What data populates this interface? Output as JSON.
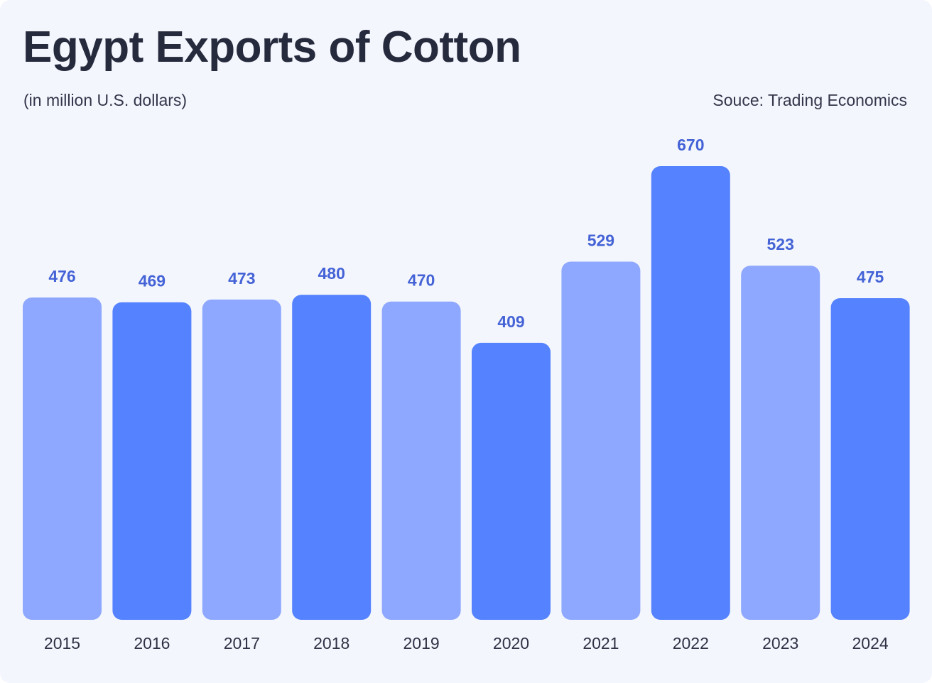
{
  "header": {
    "title": "Egypt Exports of Cotton",
    "subtitle": "(in million U.S. dollars)",
    "source": "Souce: Trading Economics"
  },
  "colors": {
    "bar_light": "#8ea8ff",
    "bar_dark": "#5582ff",
    "value_label": "#4463d6"
  },
  "chart_data": {
    "type": "bar",
    "title": "Egypt Exports of Cotton",
    "subtitle": "(in million U.S. dollars)",
    "categories": [
      "2015",
      "2016",
      "2017",
      "2018",
      "2019",
      "2020",
      "2021",
      "2022",
      "2023",
      "2024"
    ],
    "values": [
      476,
      469,
      473,
      480,
      470,
      409,
      529,
      670,
      523,
      475
    ],
    "bar_colors": [
      "#8ea8ff",
      "#5582ff",
      "#8ea8ff",
      "#5582ff",
      "#8ea8ff",
      "#5582ff",
      "#8ea8ff",
      "#5582ff",
      "#8ea8ff",
      "#5582ff"
    ],
    "data_labels": true,
    "grid": false,
    "xlabel": "",
    "ylabel": "",
    "ylim": [
      0,
      670
    ]
  }
}
